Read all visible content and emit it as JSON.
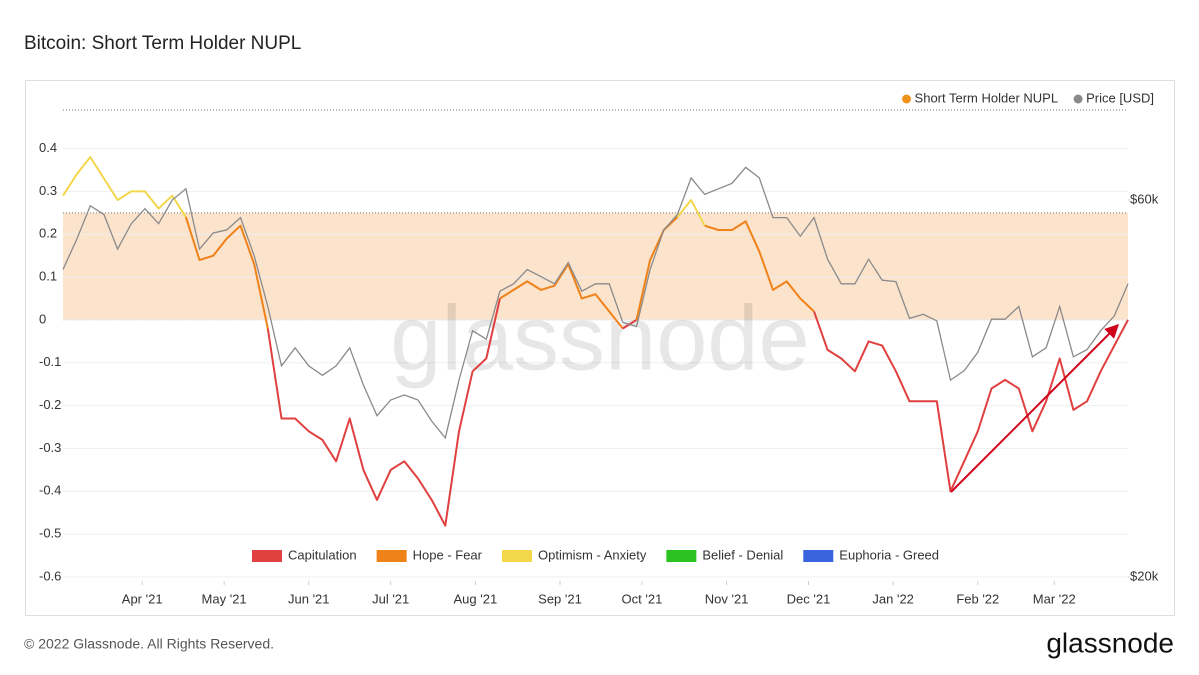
{
  "chart_data": {
    "type": "line",
    "title": "Bitcoin: Short Term Holder NUPL",
    "watermark": "glassnode",
    "copyright": "© 2022 Glassnode. All Rights Reserved.",
    "logo": "glassnode",
    "x": [
      "2021-03-03",
      "2021-03-08",
      "2021-03-13",
      "2021-03-18",
      "2021-03-23",
      "2021-03-28",
      "2021-04-02",
      "2021-04-07",
      "2021-04-12",
      "2021-04-17",
      "2021-04-22",
      "2021-04-27",
      "2021-05-02",
      "2021-05-07",
      "2021-05-12",
      "2021-05-17",
      "2021-05-22",
      "2021-05-27",
      "2021-06-01",
      "2021-06-06",
      "2021-06-11",
      "2021-06-16",
      "2021-06-21",
      "2021-06-26",
      "2021-07-01",
      "2021-07-06",
      "2021-07-11",
      "2021-07-16",
      "2021-07-21",
      "2021-07-26",
      "2021-07-31",
      "2021-08-05",
      "2021-08-10",
      "2021-08-15",
      "2021-08-20",
      "2021-08-25",
      "2021-08-30",
      "2021-09-04",
      "2021-09-09",
      "2021-09-14",
      "2021-09-19",
      "2021-09-24",
      "2021-09-29",
      "2021-10-04",
      "2021-10-09",
      "2021-10-14",
      "2021-10-19",
      "2021-10-24",
      "2021-10-29",
      "2021-11-03",
      "2021-11-08",
      "2021-11-13",
      "2021-11-18",
      "2021-11-23",
      "2021-11-28",
      "2021-12-03",
      "2021-12-08",
      "2021-12-13",
      "2021-12-18",
      "2021-12-23",
      "2021-12-28",
      "2022-01-02",
      "2022-01-07",
      "2022-01-12",
      "2022-01-17",
      "2022-01-22",
      "2022-01-27",
      "2022-02-01",
      "2022-02-06",
      "2022-02-11",
      "2022-02-16",
      "2022-02-21",
      "2022-02-26",
      "2022-03-03",
      "2022-03-08",
      "2022-03-13",
      "2022-03-18",
      "2022-03-23",
      "2022-03-28"
    ],
    "series": [
      {
        "name": "Short Term Holder NUPL",
        "color": "#f0921e",
        "values": [
          0.29,
          0.34,
          0.38,
          0.33,
          0.28,
          0.3,
          0.3,
          0.26,
          0.29,
          0.24,
          0.14,
          0.15,
          0.19,
          0.22,
          0.13,
          -0.02,
          -0.23,
          -0.23,
          -0.26,
          -0.28,
          -0.33,
          -0.23,
          -0.35,
          -0.42,
          -0.35,
          -0.33,
          -0.37,
          -0.42,
          -0.48,
          -0.26,
          -0.12,
          -0.09,
          0.05,
          0.07,
          0.09,
          0.07,
          0.08,
          0.13,
          0.05,
          0.06,
          0.02,
          -0.02,
          0.0,
          0.14,
          0.21,
          0.24,
          0.28,
          0.22,
          0.21,
          0.21,
          0.23,
          0.16,
          0.07,
          0.09,
          0.05,
          0.02,
          -0.07,
          -0.09,
          -0.12,
          -0.05,
          -0.06,
          -0.12,
          -0.19,
          -0.19,
          -0.19,
          -0.4,
          -0.33,
          -0.26,
          -0.16,
          -0.14,
          -0.16,
          -0.26,
          -0.19,
          -0.09,
          -0.21,
          -0.19,
          -0.12,
          -0.06,
          0.0
        ]
      },
      {
        "name": "Price [USD]",
        "color": "#8a8a8a",
        "axis": "y2",
        "values": [
          49000,
          53500,
          59000,
          57500,
          52000,
          56000,
          58500,
          56000,
          60000,
          62000,
          52000,
          54500,
          55000,
          57000,
          51000,
          44000,
          37000,
          39000,
          37000,
          36000,
          37000,
          39000,
          35000,
          32000,
          33500,
          34000,
          33500,
          31500,
          30000,
          35500,
          41000,
          40000,
          46000,
          47000,
          49000,
          48000,
          47000,
          50000,
          46000,
          47000,
          47000,
          42000,
          41500,
          49000,
          55000,
          57500,
          64000,
          61000,
          62000,
          63000,
          66000,
          64000,
          57000,
          57000,
          54000,
          57000,
          50500,
          47000,
          47000,
          50500,
          47500,
          47300,
          42500,
          43000,
          42200,
          35500,
          36500,
          38500,
          42400,
          42400,
          44000,
          38000,
          39000,
          44000,
          38000,
          38800,
          41000,
          42800,
          47000
        ]
      }
    ],
    "zones": [
      {
        "name": "Capitulation",
        "color": "#e0403f"
      },
      {
        "name": "Hope - Fear",
        "color": "#f0821a"
      },
      {
        "name": "Optimism - Anxiety",
        "color": "#f2d64b"
      },
      {
        "name": "Belief - Denial",
        "color": "#2cc21f"
      },
      {
        "name": "Euphoria - Greed",
        "color": "#3a63e0"
      }
    ],
    "band": {
      "from": 0,
      "to": 0.25,
      "color": "#fbe3cc"
    },
    "xlim": [
      "2021-03-03",
      "2022-03-28"
    ],
    "xticks": [
      {
        "value": "2021-04-01",
        "label": "Apr '21"
      },
      {
        "value": "2021-05-01",
        "label": "May '21"
      },
      {
        "value": "2021-06-01",
        "label": "Jun '21"
      },
      {
        "value": "2021-07-01",
        "label": "Jul '21"
      },
      {
        "value": "2021-08-01",
        "label": "Aug '21"
      },
      {
        "value": "2021-09-01",
        "label": "Sep '21"
      },
      {
        "value": "2021-10-01",
        "label": "Oct '21"
      },
      {
        "value": "2021-11-01",
        "label": "Nov '21"
      },
      {
        "value": "2021-12-01",
        "label": "Dec '21"
      },
      {
        "value": "2022-01-01",
        "label": "Jan '22"
      },
      {
        "value": "2022-02-01",
        "label": "Feb '22"
      },
      {
        "value": "2022-03-01",
        "label": "Mar '22"
      }
    ],
    "ylim": [
      -0.6,
      0.49
    ],
    "yticks": [
      -0.6,
      -0.5,
      -0.4,
      -0.3,
      -0.2,
      -0.1,
      0,
      0.1,
      0.2,
      0.3,
      0.4
    ],
    "y2lim": [
      20000,
      78000
    ],
    "y2ticks": [
      {
        "value": 20000,
        "label": "$20k"
      },
      {
        "value": 60000,
        "label": "$60k"
      }
    ],
    "y2log": true,
    "grid": true,
    "legend": "top-right"
  }
}
